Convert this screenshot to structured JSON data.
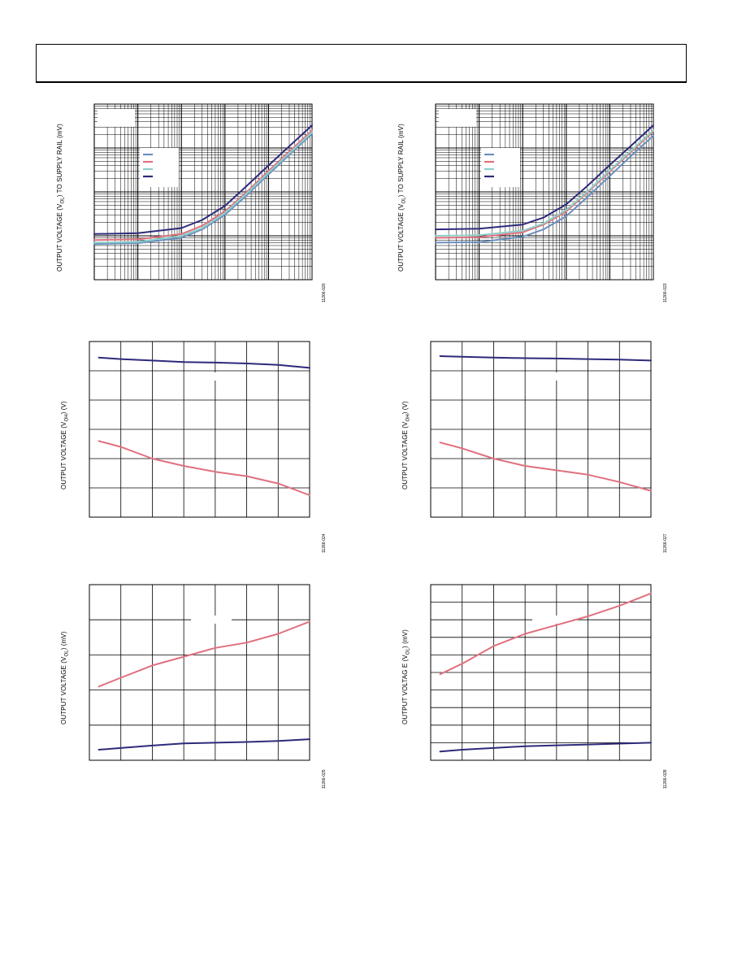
{
  "header": {
    "text": ""
  },
  "chart_data": [
    {
      "id": "c1",
      "type": "line",
      "ylabel_parts": [
        "OUTPUT VOLTAGE (V",
        "OL",
        ") TO SUPPLY RAIL (mV)"
      ],
      "figure_id": "11266-020",
      "xscale": "log",
      "yscale": "log",
      "xlim": [
        0.001,
        100
      ],
      "ylim": [
        1,
        10000
      ],
      "grid": true,
      "legend_position": "top-left",
      "legend_boxes": 2,
      "series": [
        {
          "color": "#6a8fbf",
          "x": [
            0.001,
            0.01,
            0.1,
            0.3,
            1,
            3,
            10,
            30,
            100
          ],
          "y": [
            6.5,
            6.8,
            9,
            14,
            30,
            80,
            250,
            700,
            2100
          ]
        },
        {
          "color": "#e0707f",
          "x": [
            0.001,
            0.01,
            0.1,
            0.3,
            1,
            3,
            10,
            30,
            100
          ],
          "y": [
            8,
            8.3,
            11,
            17,
            36,
            95,
            300,
            830,
            2500
          ]
        },
        {
          "color": "#8fd0c8",
          "x": [
            0.001,
            0.01,
            0.1,
            0.3,
            1,
            3,
            10,
            30,
            100
          ],
          "y": [
            7,
            7.3,
            10,
            15,
            33,
            88,
            275,
            760,
            2300
          ]
        },
        {
          "color": "#2e2a7a",
          "x": [
            0.001,
            0.01,
            0.1,
            0.3,
            1,
            3,
            10,
            30,
            100
          ],
          "y": [
            11,
            11.5,
            15,
            23,
            48,
            130,
            400,
            1100,
            3300
          ]
        }
      ]
    },
    {
      "id": "c2",
      "type": "line",
      "ylabel_parts": [
        "OUTPUT VOLTAGE (V",
        "OL",
        ") TO SUPPLY RAIL (mV)"
      ],
      "figure_id": "11266-023",
      "xscale": "log",
      "yscale": "log",
      "xlim": [
        0.001,
        100
      ],
      "ylim": [
        1,
        10000
      ],
      "grid": true,
      "legend_position": "top-left",
      "legend_boxes": 2,
      "series": [
        {
          "color": "#6a8fbf",
          "x": [
            0.001,
            0.01,
            0.1,
            0.3,
            1,
            3,
            10,
            30,
            100
          ],
          "y": [
            7,
            7.2,
            9.5,
            14,
            28,
            75,
            230,
            650,
            1900
          ]
        },
        {
          "color": "#e0707f",
          "x": [
            0.001,
            0.01,
            0.1,
            0.3,
            1,
            3,
            10,
            30,
            100
          ],
          "y": [
            9,
            9.3,
            12,
            18,
            36,
            95,
            290,
            800,
            2400
          ]
        },
        {
          "color": "#8fd0c8",
          "x": [
            0.001,
            0.01,
            0.1,
            0.3,
            1,
            3,
            10,
            30,
            100
          ],
          "y": [
            10,
            10.3,
            13,
            19,
            39,
            100,
            310,
            850,
            2550
          ]
        },
        {
          "color": "#2e2a7a",
          "x": [
            0.001,
            0.01,
            0.1,
            0.3,
            1,
            3,
            10,
            30,
            100
          ],
          "y": [
            14,
            14.5,
            18,
            26,
            52,
            135,
            410,
            1100,
            3300
          ]
        }
      ]
    },
    {
      "id": "c3",
      "type": "line",
      "ylabel_parts": [
        "OUTPUT VOLTAGE (V",
        "OH",
        ") (V)"
      ],
      "figure_id": "11266-024",
      "xscale": "linear",
      "yscale": "linear",
      "xlim": [
        0,
        7
      ],
      "ylim": [
        0,
        6
      ],
      "grid": true,
      "legend_position": "none",
      "legend_boxes": 0,
      "series": [
        {
          "color": "#2e2a7a",
          "x": [
            0.3,
            1,
            2,
            3,
            4,
            5,
            6,
            7
          ],
          "y": [
            5.45,
            5.4,
            5.35,
            5.3,
            5.28,
            5.25,
            5.2,
            5.1
          ]
        },
        {
          "color": "#e0707f",
          "x": [
            0.3,
            1,
            2,
            3,
            4,
            5,
            6,
            7
          ],
          "y": [
            2.6,
            2.4,
            2.0,
            1.75,
            1.55,
            1.4,
            1.15,
            0.75
          ]
        }
      ]
    },
    {
      "id": "c4",
      "type": "line",
      "ylabel_parts": [
        "OUTPUT VOLTAGE (V",
        "OH",
        ") (V)"
      ],
      "figure_id": "11266-027",
      "xscale": "linear",
      "yscale": "linear",
      "xlim": [
        0,
        7
      ],
      "ylim": [
        0,
        6
      ],
      "grid": true,
      "legend_position": "none",
      "legend_boxes": 0,
      "series": [
        {
          "color": "#2e2a7a",
          "x": [
            0.3,
            1,
            2,
            3,
            4,
            5,
            6,
            7
          ],
          "y": [
            5.5,
            5.48,
            5.45,
            5.43,
            5.42,
            5.4,
            5.38,
            5.35
          ]
        },
        {
          "color": "#e0707f",
          "x": [
            0.3,
            1,
            2,
            3,
            4,
            5,
            6,
            7
          ],
          "y": [
            2.55,
            2.35,
            2.0,
            1.75,
            1.6,
            1.45,
            1.2,
            0.9
          ]
        }
      ]
    },
    {
      "id": "c5",
      "type": "line",
      "ylabel_parts": [
        "OUTPUT VOLTAGE (V",
        "OL",
        ") (mV)"
      ],
      "figure_id": "11266-025",
      "xscale": "linear",
      "yscale": "linear",
      "xlim": [
        0,
        7
      ],
      "ylim": [
        0,
        5
      ],
      "grid": true,
      "legend_position": "none",
      "legend_boxes": 0,
      "series": [
        {
          "color": "#2e2a7a",
          "x": [
            0.3,
            1,
            2,
            3,
            4,
            5,
            6,
            7
          ],
          "y": [
            0.3,
            0.35,
            0.42,
            0.48,
            0.5,
            0.52,
            0.55,
            0.6
          ]
        },
        {
          "color": "#e0707f",
          "x": [
            0.3,
            1,
            2,
            3,
            4,
            5,
            6,
            7
          ],
          "y": [
            2.1,
            2.35,
            2.7,
            2.95,
            3.2,
            3.35,
            3.6,
            3.95
          ]
        }
      ]
    },
    {
      "id": "c6",
      "type": "line",
      "ylabel_parts": [
        "OUTPUT VOLTAG E (V",
        "OL",
        ") (mV)"
      ],
      "figure_id": "11266-028",
      "xscale": "linear",
      "yscale": "linear",
      "xlim": [
        0,
        7
      ],
      "ylim": [
        0,
        10
      ],
      "grid": true,
      "legend_position": "none",
      "legend_boxes": 0,
      "series": [
        {
          "color": "#2e2a7a",
          "x": [
            0.3,
            1,
            2,
            3,
            4,
            5,
            6,
            7
          ],
          "y": [
            0.5,
            0.6,
            0.7,
            0.8,
            0.85,
            0.9,
            0.95,
            1.0
          ]
        },
        {
          "color": "#e0707f",
          "x": [
            0.3,
            1,
            2,
            3,
            4,
            5,
            6,
            7
          ],
          "y": [
            4.9,
            5.5,
            6.5,
            7.2,
            7.7,
            8.2,
            8.8,
            9.5
          ]
        }
      ]
    }
  ]
}
